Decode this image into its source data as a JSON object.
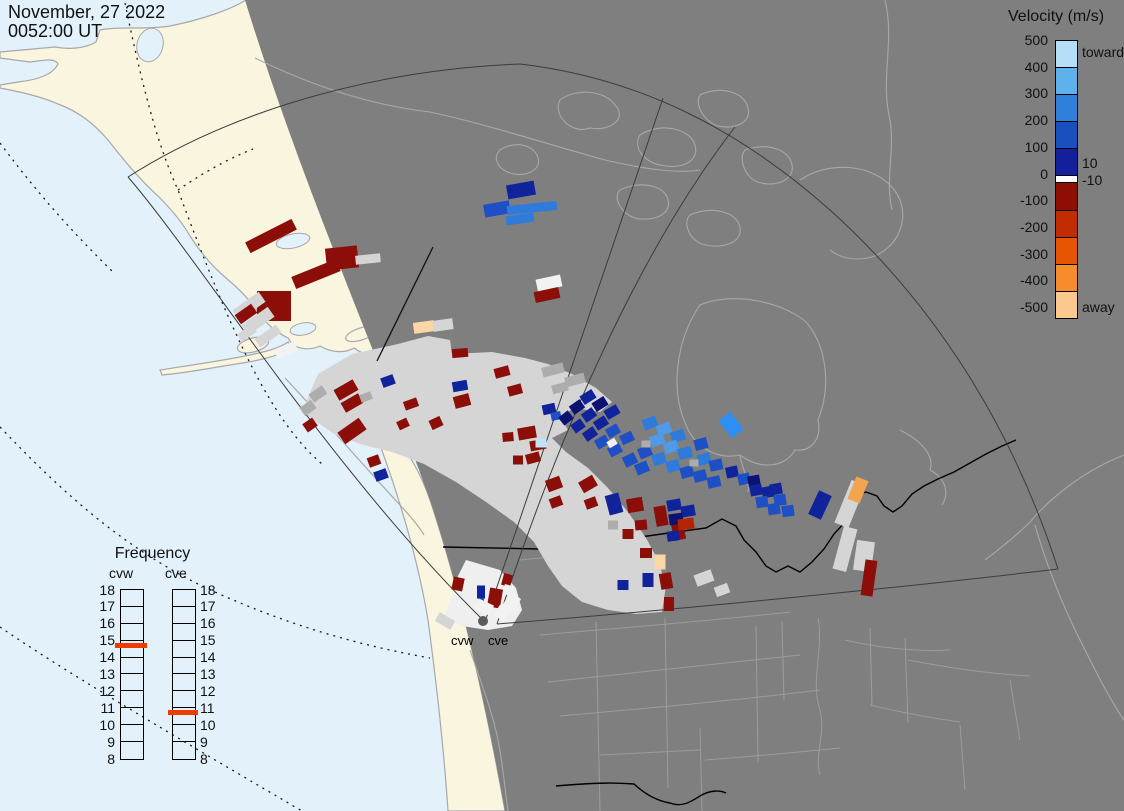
{
  "header": {
    "date": "November, 27 2022",
    "time": "0052:00 UT"
  },
  "velocity_legend": {
    "title": "Velocity (m/s)",
    "toward_label": "toward",
    "away_label": "away",
    "near_zero_high": "10",
    "near_zero_low": "-10",
    "ticks": [
      "500",
      "400",
      "300",
      "200",
      "100",
      "0",
      "-100",
      "-200",
      "-300",
      "-400",
      "-500"
    ],
    "segment_colors": [
      "#B5DFF8",
      "#5FB1EC",
      "#2E80D9",
      "#1A50BE",
      "#14209B",
      "#FFFFFF",
      "#8E0D04",
      "#C22C02",
      "#E65503",
      "#F68C2B",
      "#FBC98D"
    ]
  },
  "frequency_panel": {
    "title": "Frequency",
    "columns": [
      "cvw",
      "cve"
    ],
    "ticks": [
      "18",
      "17",
      "16",
      "15",
      "14",
      "13",
      "12",
      "11",
      "10",
      "9",
      "8"
    ],
    "marker_color": "#EE3B00",
    "markers": {
      "cvw": 14.7,
      "cve": 10.7
    }
  },
  "map_labels": {
    "radar_west": "cvw",
    "radar_east": "cve"
  },
  "chart_data": {
    "type": "map-scatter",
    "title": "SuperDARN line-of-sight velocity map, Christmas Valley East/West radars",
    "datetime": "November, 27 2022 0052:00 UT",
    "radars": [
      "cvw",
      "cve"
    ],
    "velocity_scale_ms": [
      500,
      400,
      300,
      200,
      100,
      0,
      -100,
      -200,
      -300,
      -400,
      -500
    ],
    "ground_scatter_color": "#D5D5D5",
    "frequency_mhz": {
      "cvw": 14.7,
      "cve": 10.7
    },
    "palette": {
      "b0": "#0B1272",
      "b1": "#10239B",
      "b2": "#1E4FC4",
      "b3": "#2F7BDC",
      "b4": "#4F9BE8",
      "b5": "#2E8FF2",
      "lb": "#BFE3F7",
      "r0": "#8B0F08",
      "r1": "#B22405",
      "o1": "#F2A44F",
      "p1": "#FAD7A4",
      "gs": "#D5D5D5",
      "gs2": "#ADADAD",
      "ws": "#F2F2F2"
    },
    "cells": [
      [
        521,
        190,
        28,
        14,
        -10,
        "b1"
      ],
      [
        497,
        209,
        26,
        13,
        -10,
        "b2"
      ],
      [
        532,
        208,
        50,
        9,
        -6,
        "b3"
      ],
      [
        520,
        219,
        28,
        9,
        -8,
        "b3"
      ],
      [
        549,
        283,
        25,
        12,
        -12,
        "ws"
      ],
      [
        547,
        295,
        25,
        11,
        -12,
        "r0"
      ],
      [
        271,
        236,
        52,
        12,
        -27,
        "r0"
      ],
      [
        342,
        258,
        32,
        22,
        -6,
        "r0"
      ],
      [
        368,
        259,
        25,
        9,
        -6,
        "gs"
      ],
      [
        316,
        274,
        48,
        13,
        -22,
        "r0"
      ],
      [
        274,
        306,
        34,
        30,
        0,
        "r0"
      ],
      [
        249,
        306,
        32,
        12,
        -35,
        "gs"
      ],
      [
        258,
        321,
        32,
        12,
        -35,
        "gs"
      ],
      [
        246,
        314,
        20,
        11,
        -35,
        "r0"
      ],
      [
        268,
        336,
        26,
        10,
        -35,
        "gs"
      ],
      [
        286,
        350,
        22,
        10,
        -22,
        "ws"
      ],
      [
        247,
        333,
        18,
        9,
        -35,
        "gs"
      ],
      [
        424,
        327,
        21,
        11,
        -8,
        "p1"
      ],
      [
        443,
        325,
        20,
        11,
        -8,
        "gs"
      ],
      [
        460,
        353,
        16,
        9,
        -5,
        "r0"
      ],
      [
        346,
        390,
        22,
        12,
        -30,
        "r0"
      ],
      [
        352,
        403,
        20,
        11,
        -30,
        "r0"
      ],
      [
        366,
        397,
        12,
        8,
        -20,
        "gs2"
      ],
      [
        411,
        404,
        14,
        9,
        -20,
        "r0"
      ],
      [
        388,
        381,
        13,
        10,
        -20,
        "b1"
      ],
      [
        460,
        386,
        15,
        10,
        -10,
        "b1"
      ],
      [
        462,
        401,
        16,
        12,
        -15,
        "r0"
      ],
      [
        352,
        431,
        26,
        14,
        -35,
        "r0"
      ],
      [
        310,
        425,
        12,
        10,
        -35,
        "r0"
      ],
      [
        436,
        423,
        12,
        10,
        -25,
        "r0"
      ],
      [
        403,
        424,
        11,
        9,
        -25,
        "r0"
      ],
      [
        374,
        461,
        12,
        10,
        -20,
        "r0"
      ],
      [
        381,
        475,
        13,
        10,
        -20,
        "b1"
      ],
      [
        502,
        372,
        15,
        10,
        -15,
        "r0"
      ],
      [
        515,
        390,
        14,
        10,
        -15,
        "r0"
      ],
      [
        549,
        409,
        13,
        10,
        -12,
        "b1"
      ],
      [
        556,
        416,
        10,
        8,
        -12,
        "b2"
      ],
      [
        527,
        433,
        18,
        12,
        -10,
        "r0"
      ],
      [
        508,
        437,
        11,
        9,
        -5,
        "r0"
      ],
      [
        538,
        445,
        16,
        10,
        -10,
        "r0"
      ],
      [
        533,
        458,
        14,
        10,
        -15,
        "r0"
      ],
      [
        541,
        443,
        11,
        9,
        0,
        "lb"
      ],
      [
        518,
        460,
        10,
        9,
        0,
        "r0"
      ],
      [
        554,
        484,
        15,
        12,
        -20,
        "r0"
      ],
      [
        556,
        502,
        12,
        10,
        -20,
        "r0"
      ],
      [
        588,
        484,
        16,
        12,
        -30,
        "r0"
      ],
      [
        591,
        503,
        12,
        10,
        -20,
        "r0"
      ],
      [
        614,
        504,
        14,
        20,
        -15,
        "b1"
      ],
      [
        635,
        505,
        16,
        14,
        -10,
        "r0"
      ],
      [
        641,
        525,
        12,
        10,
        -5,
        "r0"
      ],
      [
        628,
        534,
        11,
        10,
        0,
        "r0"
      ],
      [
        613,
        525,
        10,
        9,
        0,
        "gs2"
      ],
      [
        661,
        516,
        12,
        20,
        -10,
        "r0"
      ],
      [
        678,
        529,
        12,
        22,
        -12,
        "r0"
      ],
      [
        646,
        553,
        12,
        10,
        0,
        "r0"
      ],
      [
        660,
        562,
        11,
        15,
        0,
        "p1"
      ],
      [
        648,
        580,
        11,
        14,
        0,
        "b1"
      ],
      [
        666,
        581,
        12,
        16,
        -10,
        "r0"
      ],
      [
        623,
        585,
        11,
        10,
        0,
        "b1"
      ],
      [
        669,
        604,
        10,
        14,
        0,
        "r0"
      ],
      [
        704,
        578,
        18,
        12,
        -20,
        "gs"
      ],
      [
        722,
        590,
        14,
        10,
        -20,
        "gs"
      ],
      [
        553,
        370,
        22,
        10,
        -15,
        "gs2"
      ],
      [
        575,
        380,
        20,
        10,
        -15,
        "gs2"
      ],
      [
        560,
        388,
        16,
        9,
        -15,
        "gs2"
      ],
      [
        318,
        394,
        16,
        10,
        -35,
        "gs2"
      ],
      [
        308,
        408,
        14,
        10,
        -35,
        "gs2"
      ],
      [
        588,
        397,
        14,
        10,
        -32,
        "b1"
      ],
      [
        600,
        404,
        14,
        10,
        -32,
        "b0"
      ],
      [
        612,
        412,
        14,
        10,
        -30,
        "b1"
      ],
      [
        577,
        407,
        13,
        10,
        -35,
        "b0"
      ],
      [
        589,
        415,
        13,
        10,
        -35,
        "b1"
      ],
      [
        601,
        423,
        13,
        10,
        -32,
        "b1"
      ],
      [
        613,
        431,
        13,
        10,
        -30,
        "b2"
      ],
      [
        566,
        418,
        12,
        10,
        -38,
        "b0"
      ],
      [
        578,
        426,
        12,
        10,
        -35,
        "b1"
      ],
      [
        590,
        434,
        13,
        10,
        -35,
        "b1"
      ],
      [
        602,
        442,
        13,
        10,
        -30,
        "b2"
      ],
      [
        615,
        450,
        13,
        10,
        -28,
        "b2"
      ],
      [
        612,
        443,
        9,
        7,
        -30,
        "ws"
      ],
      [
        627,
        438,
        13,
        10,
        -25,
        "b2"
      ],
      [
        650,
        423,
        14,
        11,
        -20,
        "b3"
      ],
      [
        664,
        429,
        14,
        11,
        -20,
        "b4"
      ],
      [
        678,
        436,
        14,
        11,
        -18,
        "b3"
      ],
      [
        657,
        440,
        14,
        11,
        -20,
        "b4"
      ],
      [
        671,
        447,
        14,
        11,
        -18,
        "b4"
      ],
      [
        685,
        453,
        14,
        11,
        -15,
        "b3"
      ],
      [
        645,
        452,
        13,
        11,
        -22,
        "b2"
      ],
      [
        659,
        459,
        13,
        11,
        -18,
        "b3"
      ],
      [
        673,
        466,
        13,
        11,
        -15,
        "b3"
      ],
      [
        687,
        472,
        13,
        11,
        -15,
        "b2"
      ],
      [
        630,
        460,
        13,
        11,
        -25,
        "b2"
      ],
      [
        642,
        468,
        13,
        11,
        -22,
        "b2"
      ],
      [
        701,
        444,
        13,
        11,
        -15,
        "b2"
      ],
      [
        704,
        459,
        13,
        11,
        -15,
        "b3"
      ],
      [
        716,
        465,
        13,
        11,
        -12,
        "b2"
      ],
      [
        700,
        476,
        13,
        11,
        -15,
        "b2"
      ],
      [
        714,
        482,
        13,
        11,
        -12,
        "b2"
      ],
      [
        731,
        425,
        15,
        22,
        -38,
        "b5"
      ],
      [
        732,
        472,
        12,
        11,
        -12,
        "b1"
      ],
      [
        744,
        479,
        12,
        11,
        -12,
        "b2"
      ],
      [
        754,
        481,
        12,
        11,
        -10,
        "b0"
      ],
      [
        756,
        490,
        12,
        11,
        -10,
        "b1"
      ],
      [
        768,
        492,
        12,
        11,
        -10,
        "b1"
      ],
      [
        776,
        489,
        12,
        11,
        -10,
        "b1"
      ],
      [
        780,
        500,
        12,
        11,
        -8,
        "b2"
      ],
      [
        788,
        511,
        12,
        11,
        -8,
        "b2"
      ],
      [
        762,
        502,
        12,
        11,
        -8,
        "b2"
      ],
      [
        774,
        509,
        12,
        11,
        -8,
        "b2"
      ],
      [
        646,
        444,
        9,
        7,
        0,
        "gs2"
      ],
      [
        694,
        463,
        9,
        7,
        0,
        "gs2"
      ],
      [
        674,
        505,
        14,
        11,
        -10,
        "b1"
      ],
      [
        688,
        511,
        14,
        11,
        -10,
        "b1"
      ],
      [
        676,
        519,
        14,
        11,
        -8,
        "b0"
      ],
      [
        686,
        524,
        16,
        11,
        -8,
        "r1"
      ],
      [
        673,
        536,
        12,
        10,
        -8,
        "b1"
      ],
      [
        820,
        505,
        14,
        26,
        25,
        "b1"
      ],
      [
        850,
        504,
        15,
        46,
        22,
        "gs"
      ],
      [
        858,
        490,
        13,
        24,
        22,
        "o1"
      ],
      [
        845,
        549,
        14,
        44,
        15,
        "gs"
      ],
      [
        864,
        556,
        18,
        30,
        8,
        "gs"
      ],
      [
        869,
        578,
        12,
        36,
        8,
        "r0"
      ],
      [
        458,
        584,
        11,
        13,
        12,
        "r0"
      ],
      [
        481,
        592,
        8,
        13,
        0,
        "b1"
      ],
      [
        495,
        598,
        13,
        19,
        10,
        "r0"
      ],
      [
        481,
        602,
        6,
        8,
        0,
        "b2"
      ],
      [
        507,
        580,
        9,
        12,
        15,
        "r0"
      ],
      [
        508,
        590,
        9,
        10,
        15,
        "ws"
      ],
      [
        511,
        603,
        12,
        18,
        35,
        "ws"
      ],
      [
        502,
        613,
        12,
        12,
        30,
        "ws"
      ],
      [
        484,
        607,
        17,
        11,
        25,
        "ws"
      ],
      [
        445,
        621,
        18,
        10,
        30,
        "gs"
      ]
    ]
  },
  "colors": {
    "ocean": "#E3F1FB",
    "day_land": "#FAF5DE",
    "night": "#7F7F7F",
    "coastline": "#A8A8A8",
    "state_line": "#9C9C9C",
    "border": "#000000",
    "fov_line": "#3C3C3C",
    "graticule": "#1A1A1A",
    "scatter_band": "#D5D5D5",
    "white_patch": "#EFEFEF",
    "radar_dot": "#5A5A5A"
  }
}
